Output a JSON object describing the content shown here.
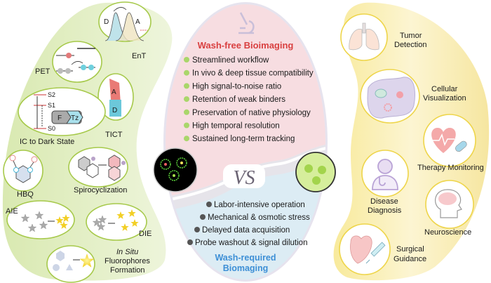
{
  "left_panel": {
    "mechanisms": [
      {
        "id": "ent",
        "label": "EnT",
        "donor": "D",
        "acceptor": "A"
      },
      {
        "id": "pet",
        "label": "PET"
      },
      {
        "id": "tict",
        "label": "TICT",
        "acceptor": "A",
        "donor": "D"
      },
      {
        "id": "ic",
        "label": "IC to Dark State",
        "s2": "S2",
        "s1": "S1",
        "s0": "S0",
        "f": "F",
        "tz": "Tz"
      },
      {
        "id": "hbq",
        "label": "HBQ"
      },
      {
        "id": "spiro",
        "label": "Spirocyclization"
      },
      {
        "id": "aie",
        "label": "AIE"
      },
      {
        "id": "die",
        "label": "DIE"
      },
      {
        "id": "insitu",
        "label_italic": "In Situ",
        "label_line2": "Fluorophores",
        "label_line3": "Formation"
      }
    ]
  },
  "center": {
    "wash_free": {
      "title": "Wash-free Bioimaging",
      "title_color": "#d94040",
      "items": [
        "Streamlined workflow",
        "In vivo & deep tissue compatibility",
        "High signal-to-noise ratio",
        "Retention of weak binders",
        "Preservation of native physiology",
        "High temporal resolution",
        "Sustained long-term tracking"
      ]
    },
    "vs": "VS",
    "wash_required": {
      "title_line1": "Wash-required",
      "title_line2": "Biomaging",
      "title_color": "#3d8fd6",
      "items": [
        "Labor-intensive operation",
        "Mechanical & osmotic stress",
        "Delayed data acquisition",
        "Probe washout & signal dilution"
      ]
    }
  },
  "right_panel": {
    "applications": [
      {
        "label1": "Tumor",
        "label2": "Detection",
        "icon": "lungs-icon"
      },
      {
        "label1": "Cellular",
        "label2": "Visualization",
        "icon": "cell-icon"
      },
      {
        "label1": "Therapy Monitoring",
        "icon": "heart-pill-icon"
      },
      {
        "label1": "Disease",
        "label2": "Diagnosis",
        "icon": "doctor-icon"
      },
      {
        "label1": "Neuroscience",
        "icon": "brain-icon"
      },
      {
        "label1": "Surgical",
        "label2": "Guidance",
        "icon": "heart-syringe-icon"
      }
    ]
  },
  "colors": {
    "left_bg": "#e4efc9",
    "left_ring": "#a6c94a",
    "right_bg": "#fbf1b8",
    "right_ring": "#eed54a",
    "pink": "#f7dde1",
    "blue": "#d8ebf3"
  }
}
